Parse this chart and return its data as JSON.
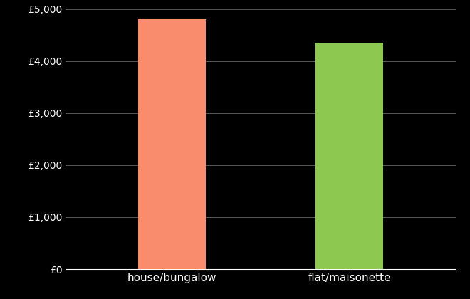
{
  "categories": [
    "house/bungalow",
    "flat/maisonette"
  ],
  "values": [
    4800,
    4350
  ],
  "bar_colors": [
    "#FA8C6E",
    "#8DC850"
  ],
  "background_color": "#000000",
  "text_color": "#ffffff",
  "grid_color": "#666666",
  "ylim": [
    0,
    5000
  ],
  "yticks": [
    0,
    1000,
    2000,
    3000,
    4000,
    5000
  ],
  "ytick_labels": [
    "£0",
    "£1,000",
    "£2,000",
    "£3,000",
    "£4,000",
    "£5,000"
  ],
  "tick_fontsize": 10,
  "label_fontsize": 11,
  "bar_width": 0.38,
  "x_positions": [
    1,
    2
  ],
  "xlim": [
    0.4,
    2.6
  ]
}
